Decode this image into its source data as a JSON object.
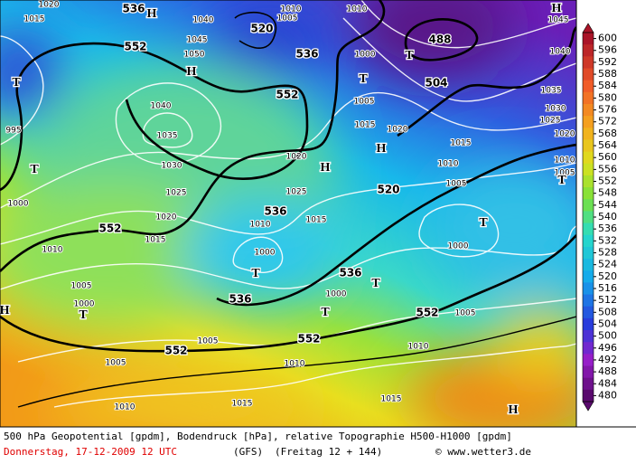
{
  "map": {
    "geopotential_labels": [
      552,
      552,
      552,
      552,
      552,
      552,
      536,
      536,
      536,
      536,
      536,
      520,
      520,
      504,
      488
    ],
    "pressure_labels": [
      "1040",
      "1045",
      "1050",
      "1040",
      "1035",
      "1030",
      "1025",
      "1020",
      "1015",
      "1010",
      "1005",
      "1000",
      "1005",
      "1005",
      "1010",
      "1015",
      "1010",
      "1010",
      "1015",
      "1000",
      "1005",
      "1000",
      "1000",
      "1010",
      "1015",
      "1025",
      "1020",
      "1005",
      "1015",
      "1020",
      "1015",
      "1010",
      "1005",
      "1035",
      "1030",
      "1025",
      "1020",
      "1010",
      "1005",
      "1040",
      "1045",
      "1020",
      "1015",
      "1000",
      "995",
      "1005",
      "1010",
      "1010",
      "1000"
    ],
    "lows": [
      "T",
      "T",
      "T",
      "T",
      "T",
      "T",
      "T",
      "T",
      "T",
      "T"
    ],
    "highs": [
      "H",
      "H",
      "H",
      "H",
      "H",
      "H",
      "H"
    ]
  },
  "colorbar": {
    "ticks": [
      600,
      596,
      592,
      588,
      584,
      580,
      576,
      572,
      568,
      564,
      560,
      556,
      552,
      548,
      544,
      540,
      536,
      532,
      528,
      524,
      520,
      516,
      512,
      508,
      504,
      500,
      496,
      492,
      488,
      484,
      480
    ]
  },
  "footer": {
    "line1": "500 hPa Geopotential [gpdm], Bodendruck [hPa], relative Topographie H500-H1000 [gpdm]",
    "date": "Donnerstag, 17-12-2009  12 UTC",
    "model": "(GFS)",
    "forecast": "(Freitag 12 + 144)",
    "credit": "© www.wetter3.de"
  }
}
